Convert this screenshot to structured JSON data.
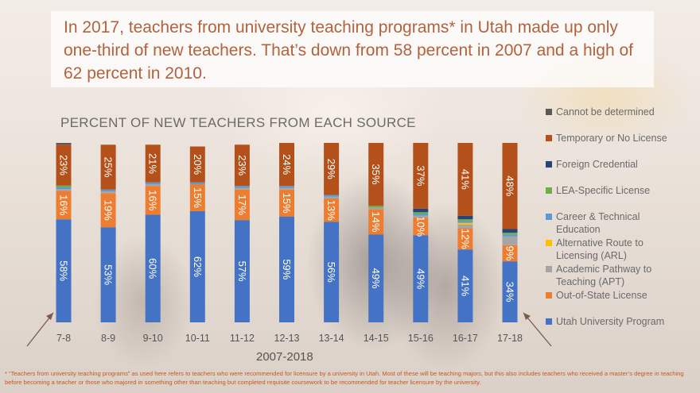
{
  "headline": "In 2017, teachers from university teaching programs* in Utah made up only one-third of new teachers. That’s down from 58 percent in 2007 and a high of 62 percent in 2010.",
  "footnote": "* “Teachers from university teaching programs” as used here refers to teachers who were recommended for licensure by a university in Utah. Most of these will be teaching majors, but this also includes teachers who received a master’s degree in teaching before becoming a teacher or those who majored in something other than teaching but completed requisite coursework to be recommended for teacher licensure by the university.",
  "chart_data": {
    "type": "bar",
    "stacked": true,
    "title": "PERCENT OF NEW TEACHERS FROM EACH SOURCE",
    "xlabel": "2007-2018",
    "ylabel": "",
    "ylim": [
      0,
      100
    ],
    "grid": false,
    "legend_position": "right",
    "categories": [
      "7-8",
      "8-9",
      "9-10",
      "10-11",
      "11-12",
      "12-13",
      "13-14",
      "14-15",
      "15-16",
      "16-17",
      "17-18"
    ],
    "series": [
      {
        "name": "Utah University Program",
        "color": "#4472c4",
        "values": [
          58,
          53,
          60,
          62,
          57,
          59,
          56,
          49,
          49,
          41,
          34
        ],
        "labels": [
          "58%",
          "53%",
          "60%",
          "62%",
          "57%",
          "59%",
          "56%",
          "49%",
          "49%",
          "41%",
          "34%"
        ]
      },
      {
        "name": "Out-of-State License",
        "color": "#ed7d31",
        "values": [
          16,
          19,
          16,
          15,
          17,
          15,
          13,
          14,
          10,
          12,
          9
        ],
        "labels": [
          "16%",
          "19%",
          "16%",
          "15%",
          "17%",
          "15%",
          "13%",
          "14%",
          "10%",
          "12%",
          "9%"
        ]
      },
      {
        "name": "Academic Pathway to Teaching (APT)",
        "color": "#a5a5a5",
        "values": [
          1,
          1,
          1,
          0,
          1,
          1,
          1,
          1,
          1,
          2,
          5
        ],
        "labels": []
      },
      {
        "name": "Alternative Route to Licensing (ARL)",
        "color": "#ffc000",
        "values": [
          0,
          0,
          0,
          0,
          0,
          0,
          0,
          0,
          0,
          1,
          0
        ],
        "labels": []
      },
      {
        "name": "Career & Technical Education",
        "color": "#5b9bd5",
        "values": [
          1,
          1,
          1,
          1,
          1,
          1,
          1,
          0,
          1,
          1,
          1
        ],
        "labels": []
      },
      {
        "name": "LEA-Specific License",
        "color": "#70ad47",
        "values": [
          1,
          0,
          0,
          0,
          0,
          0,
          0,
          1,
          1,
          1,
          1
        ],
        "labels": []
      },
      {
        "name": "Foreign Credential",
        "color": "#264478",
        "values": [
          0,
          0,
          0,
          0,
          0,
          0,
          0,
          0,
          2,
          2,
          2
        ],
        "labels": []
      },
      {
        "name": "Temporary or No License",
        "color": "#b4501a",
        "values": [
          23,
          25,
          21,
          20,
          23,
          24,
          29,
          35,
          37,
          41,
          48
        ],
        "labels": [
          "23%",
          "25%",
          "21%",
          "20%",
          "23%",
          "24%",
          "29%",
          "35%",
          "37%",
          "41%",
          "48%"
        ]
      },
      {
        "name": "Cannot be determined",
        "color": "#595959",
        "values": [
          1,
          0,
          0,
          0,
          0,
          0,
          0,
          0,
          0,
          0,
          0
        ],
        "labels": []
      }
    ],
    "legend_order": [
      "Cannot be determined",
      "Temporary or No License",
      "Foreign Credential",
      "LEA-Specific License",
      "Career & Technical Education",
      "Alternative Route to Licensing (ARL)",
      "Academic Pathway to Teaching (APT)",
      "Out-of-State License",
      "Utah University Program"
    ]
  }
}
